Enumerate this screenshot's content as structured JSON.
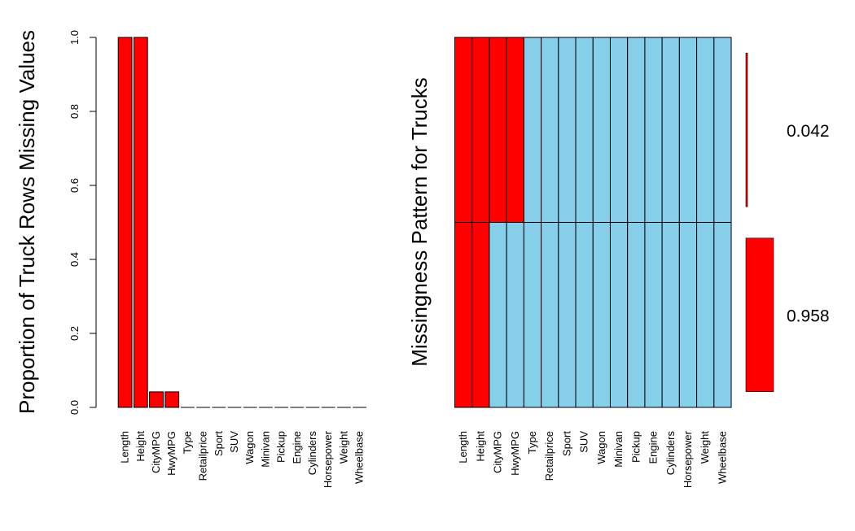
{
  "colors": {
    "missing": "#ff0000",
    "present": "#87ceeb",
    "edge": "#000000",
    "background": "#ffffff"
  },
  "chart_data": [
    {
      "type": "bar",
      "ylabel": "Proportion of Truck Rows Missing Values",
      "xlabel": "",
      "ylim": [
        0,
        1
      ],
      "yticks": [
        "0.0",
        "0.2",
        "0.4",
        "0.6",
        "0.8",
        "1.0"
      ],
      "categories": [
        "Length",
        "Height",
        "CityMPG",
        "HwyMPG",
        "Type",
        "Retailprice",
        "Sport",
        "SUV",
        "Wagon",
        "Minivan",
        "Pickup",
        "Engine",
        "Cylinders",
        "Horsepower",
        "Weight",
        "Wheelbase"
      ],
      "values": [
        1.0,
        1.0,
        0.042,
        0.042,
        0,
        0,
        0,
        0,
        0,
        0,
        0,
        0,
        0,
        0,
        0,
        0
      ],
      "grid": false
    },
    {
      "type": "heatmap",
      "ylabel": "Missingness Pattern for Trucks",
      "variables": [
        "Length",
        "Height",
        "CityMPG",
        "HwyMPG",
        "Type",
        "Retailprice",
        "Sport",
        "SUV",
        "Wagon",
        "Minivan",
        "Pickup",
        "Engine",
        "Cylinders",
        "Horsepower",
        "Weight",
        "Wheelbase"
      ],
      "patterns": [
        {
          "label": "0.042",
          "proportion": 0.042,
          "missing": [
            true,
            true,
            true,
            true,
            false,
            false,
            false,
            false,
            false,
            false,
            false,
            false,
            false,
            false,
            false,
            false
          ]
        },
        {
          "label": "0.958",
          "proportion": 0.958,
          "missing": [
            true,
            true,
            false,
            false,
            false,
            false,
            false,
            false,
            false,
            false,
            false,
            false,
            false,
            false,
            false,
            false
          ]
        }
      ]
    }
  ]
}
